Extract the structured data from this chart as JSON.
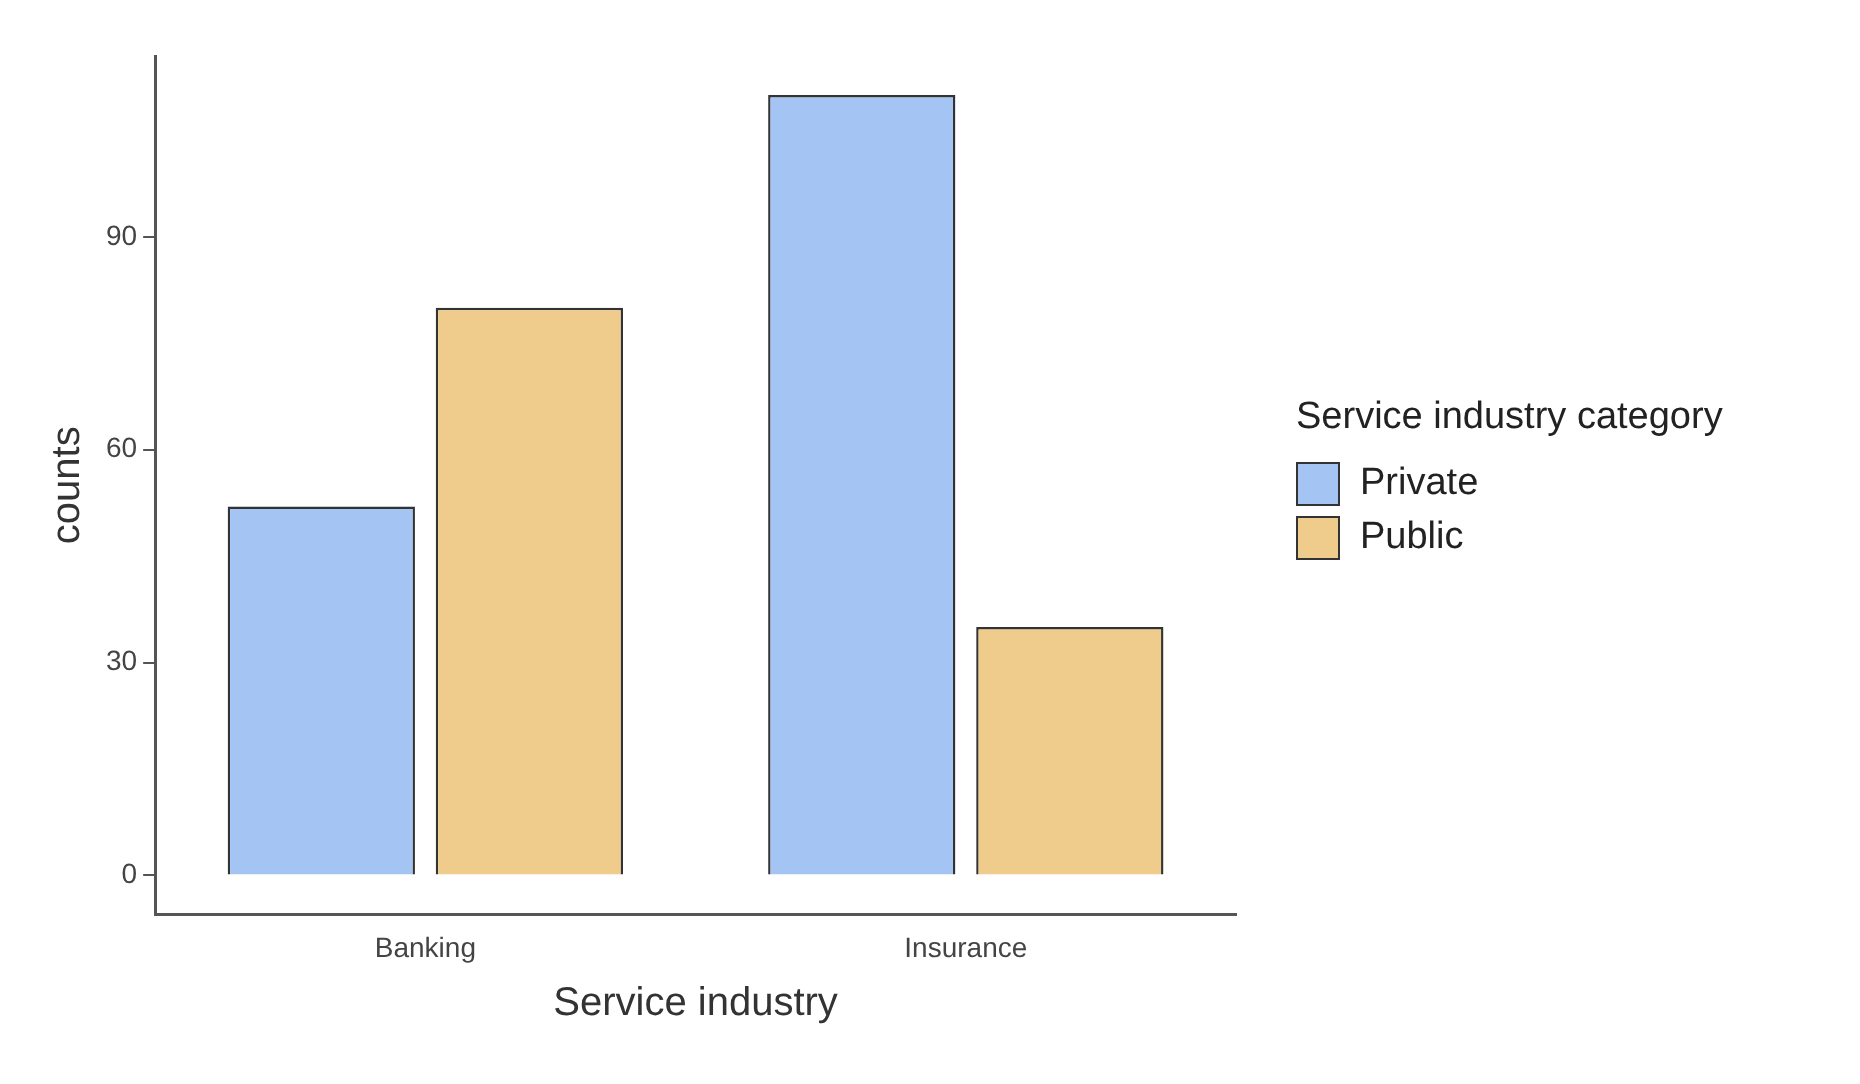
{
  "chart_data": {
    "type": "bar",
    "xlabel": "Service industry",
    "ylabel": "counts",
    "legend_title": "Service industry category",
    "categories": [
      "Banking",
      "Insurance"
    ],
    "series": [
      {
        "name": "Private",
        "color": "#a4c4f4",
        "values": [
          52,
          110
        ]
      },
      {
        "name": "Public",
        "color": "#f0cc8c",
        "values": [
          80,
          35
        ]
      }
    ],
    "ylim": [
      -5.5,
      115.5
    ],
    "yticks": [
      0,
      30,
      60,
      90
    ],
    "grid": false,
    "legend": "right"
  }
}
